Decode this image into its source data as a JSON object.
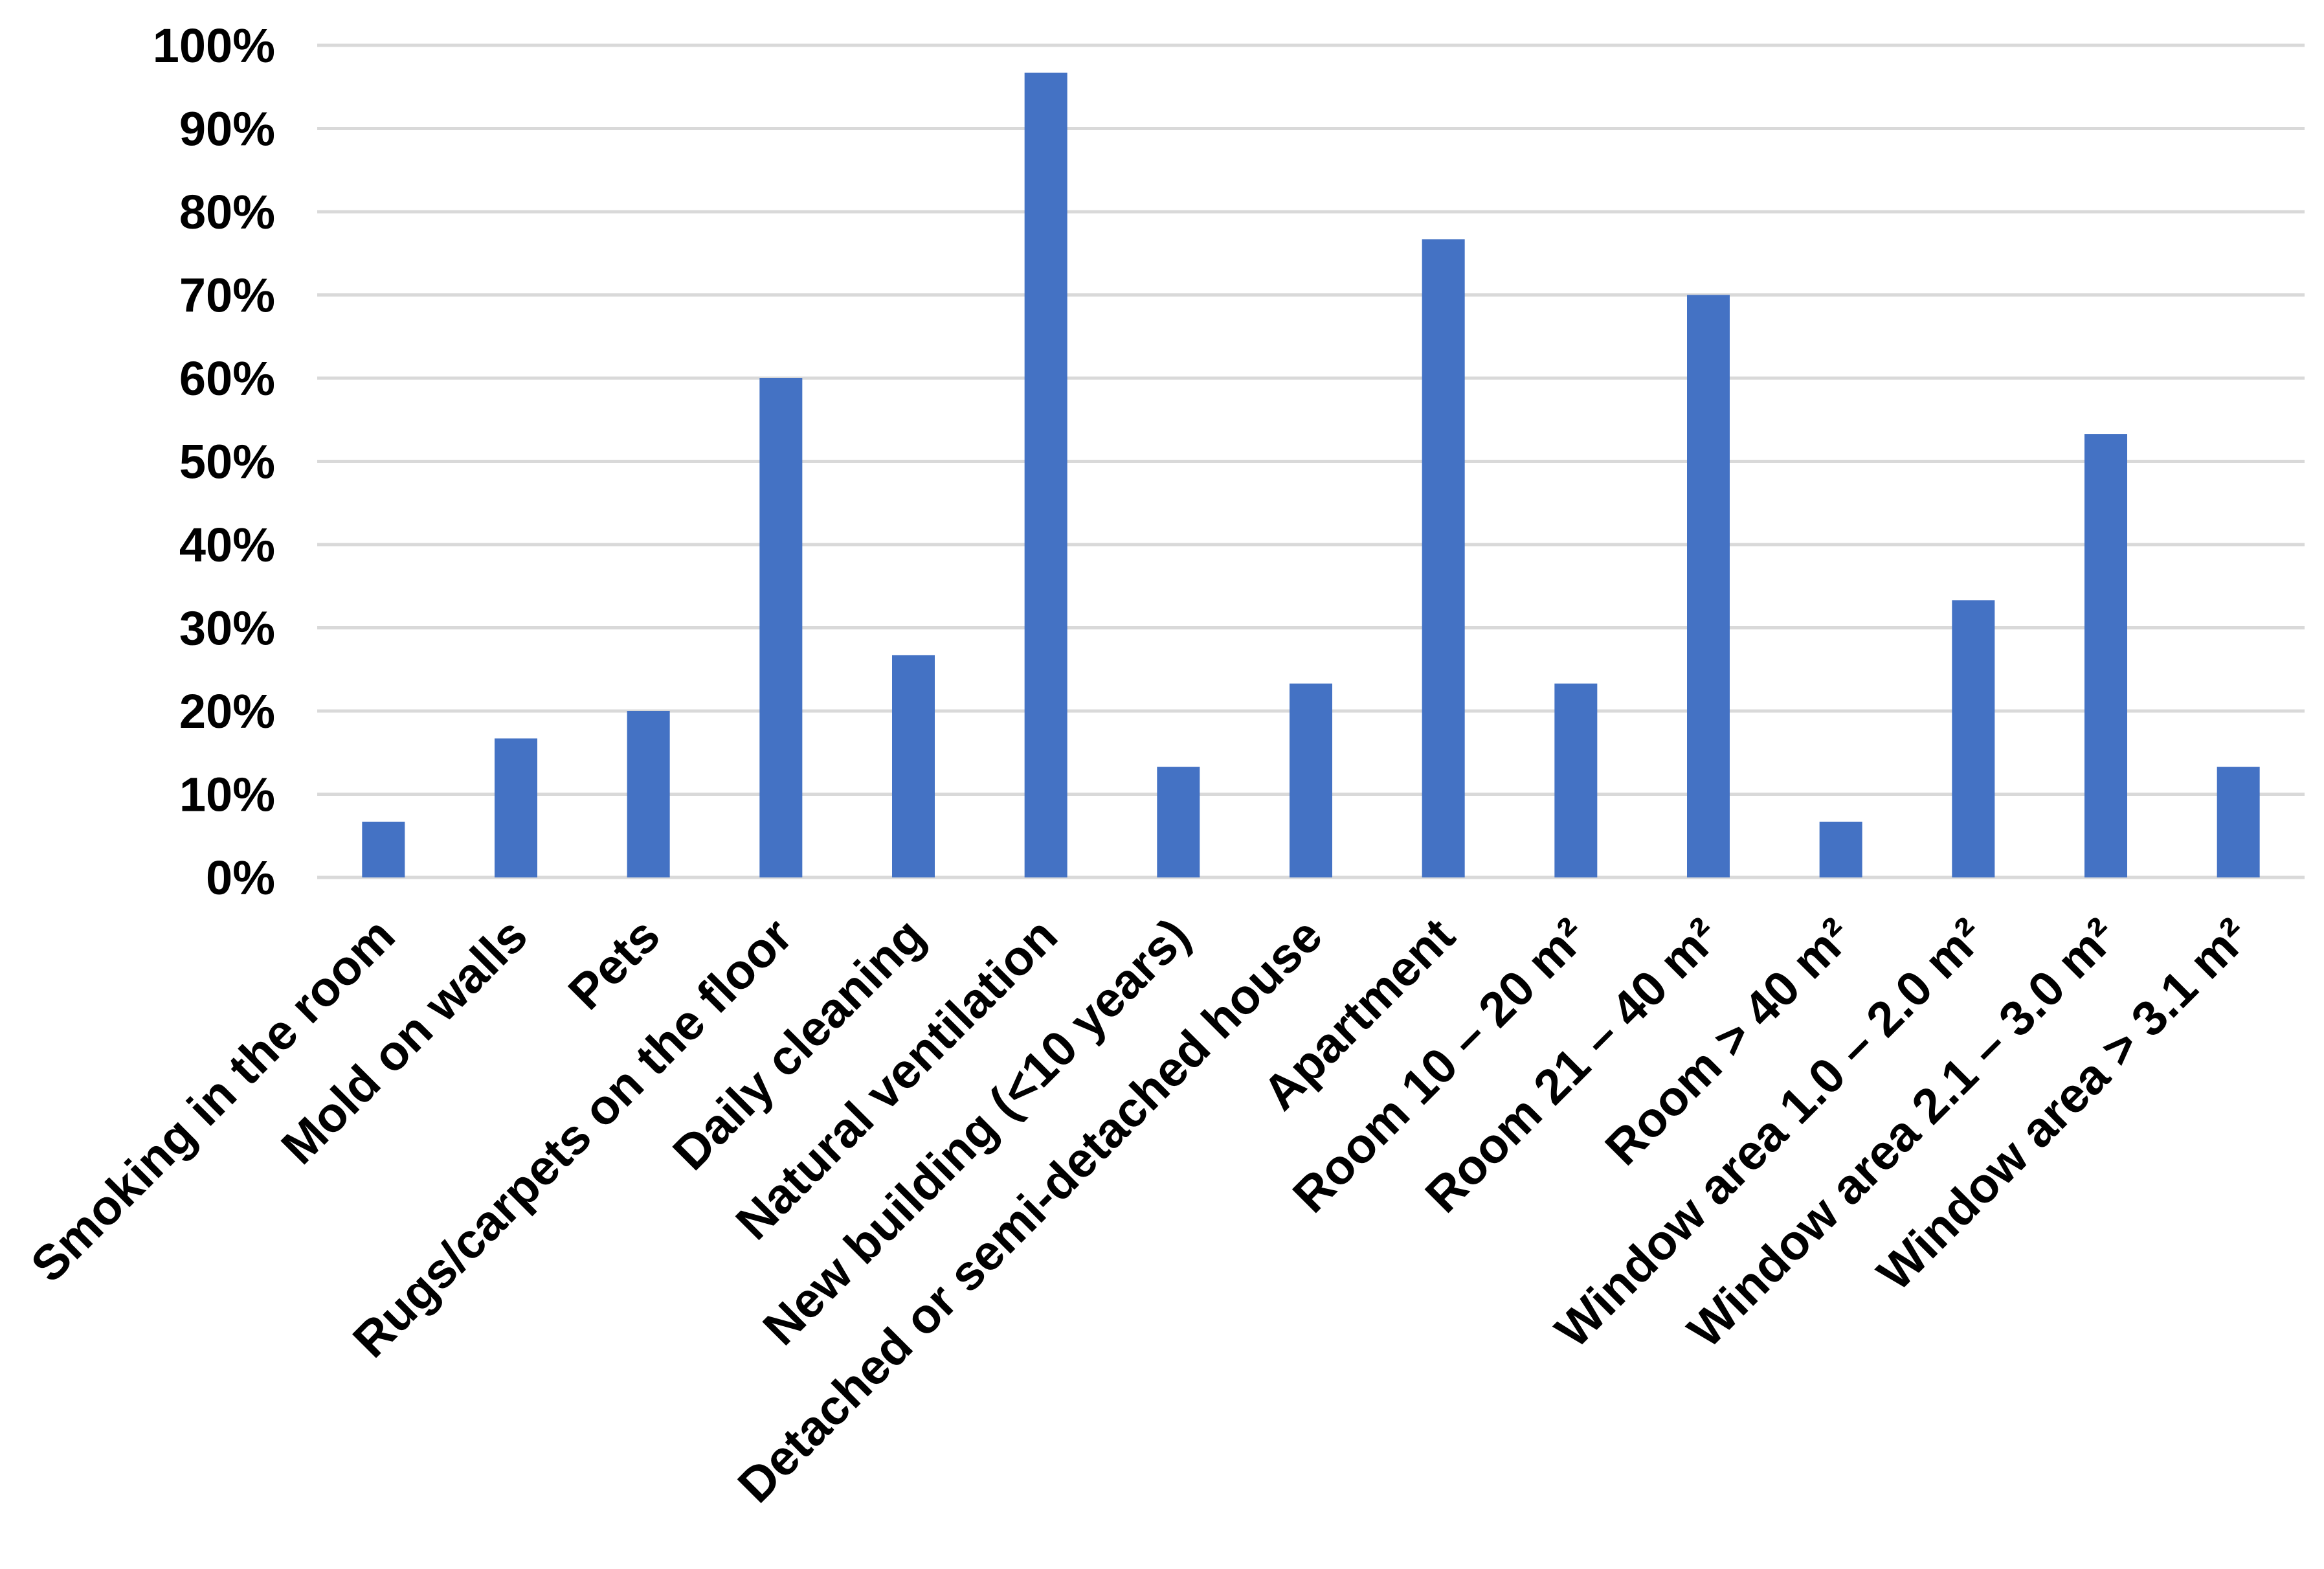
{
  "chart_data": {
    "type": "bar",
    "title": "",
    "xlabel": "",
    "ylabel": "",
    "ylim": [
      0,
      100
    ],
    "y_ticks": [
      "0%",
      "10%",
      "20%",
      "30%",
      "40%",
      "50%",
      "60%",
      "70%",
      "80%",
      "90%",
      "100%"
    ],
    "grid": true,
    "legend": "none",
    "colors": {
      "bar": "#4472c4",
      "grid": "#d9d9d9",
      "text": "#000000"
    },
    "categories": [
      "Smoking in the room",
      "Mold on walls",
      "Pets",
      "Rugs/carpets on the floor",
      "Daily cleaning",
      "Natural ventilation",
      "New building (<10 years)",
      "Detached or semi-detached house",
      "Apartment",
      "Room 10 – 20 m²",
      "Room 21 – 40 m²",
      "Room > 40 m²",
      "Window area 1.0 – 2.0 m²",
      "Window area 2.1 – 3.0 m²",
      "Window area > 3.1 m²"
    ],
    "values": [
      6.7,
      16.7,
      20.0,
      60.0,
      26.7,
      96.7,
      13.3,
      23.3,
      76.7,
      23.3,
      70.0,
      6.7,
      33.3,
      53.3,
      13.3
    ]
  }
}
